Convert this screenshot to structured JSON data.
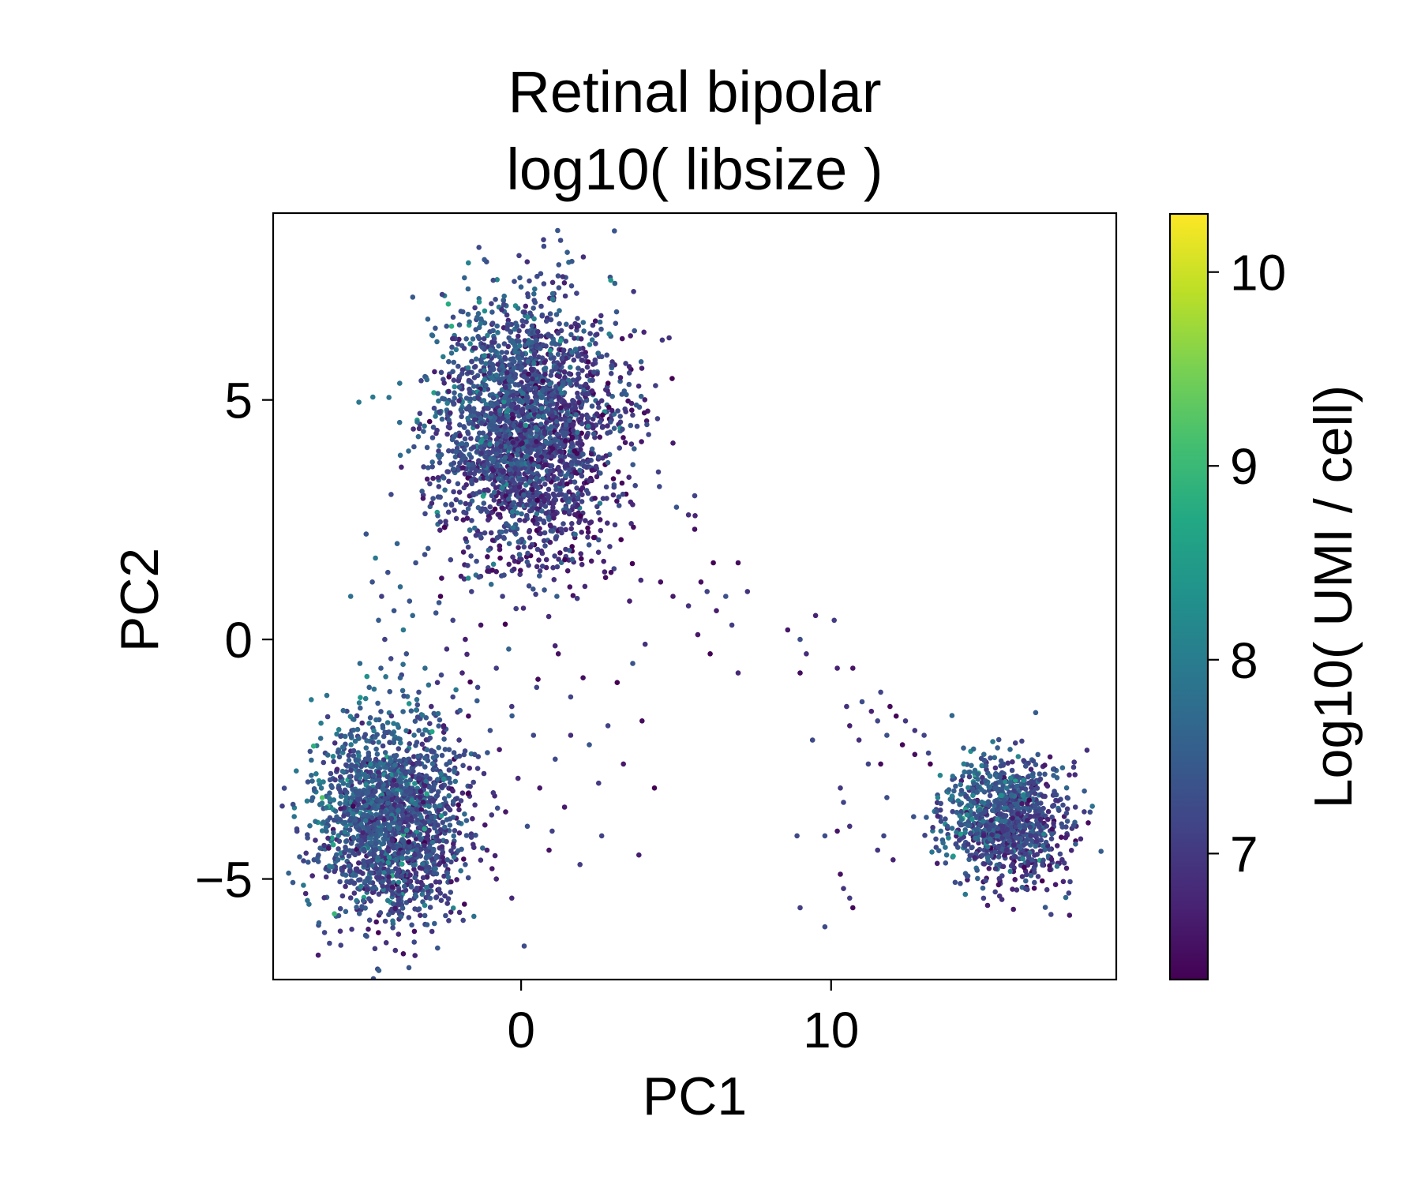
{
  "chart_data": {
    "type": "scatter",
    "title_lines": [
      "Retinal bipolar",
      "log10( libsize )"
    ],
    "xlabel": "PC1",
    "ylabel": "PC2",
    "xlim": [
      -8,
      19.2
    ],
    "ylim": [
      -7.1,
      8.9
    ],
    "x_ticks": [
      {
        "value": 0,
        "label": "0"
      },
      {
        "value": 10,
        "label": "10"
      }
    ],
    "y_ticks": [
      {
        "value": 5,
        "label": "5"
      },
      {
        "value": 0,
        "label": "0"
      },
      {
        "value": -5,
        "label": "−5"
      }
    ],
    "grid": false,
    "legend": "none",
    "colormap": "viridis",
    "colorbar": {
      "label": "Log10( UMI / cell)",
      "range": [
        6.35,
        10.3
      ],
      "ticks": [
        {
          "value": 7,
          "label": "7"
        },
        {
          "value": 8,
          "label": "8"
        },
        {
          "value": 9,
          "label": "9"
        },
        {
          "value": 10,
          "label": "10"
        }
      ]
    },
    "clusters": [
      {
        "center": [
          0.2,
          4.4
        ],
        "spread": [
          1.45,
          1.35
        ],
        "count": 2600,
        "color_mean": 7.15
      },
      {
        "center": [
          -4.2,
          -3.8
        ],
        "spread": [
          1.2,
          1.05
        ],
        "count": 1800,
        "color_mean": 7.3
      },
      {
        "center": [
          15.6,
          -3.8
        ],
        "spread": [
          1.0,
          0.65
        ],
        "count": 1000,
        "color_mean": 7.25
      }
    ],
    "bridge_points": [
      [
        -4.8,
        1.2
      ],
      [
        -4.5,
        0.9
      ],
      [
        -4.3,
        1.4
      ],
      [
        -4.1,
        0.6
      ],
      [
        -3.9,
        1.1
      ],
      [
        -3.8,
        0.2
      ],
      [
        -3.6,
        0.8
      ],
      [
        -4.6,
        0.4
      ],
      [
        -4.4,
        0.0
      ],
      [
        -4.2,
        -0.4
      ],
      [
        -3.9,
        -0.8
      ],
      [
        -3.7,
        -0.3
      ],
      [
        -3.5,
        0.5
      ],
      [
        -3.3,
        -1.1
      ],
      [
        -3.1,
        -0.6
      ],
      [
        -2.9,
        -1.4
      ],
      [
        -2.7,
        -0.9
      ],
      [
        -2.5,
        -1.8
      ],
      [
        -2.4,
        -0.2
      ],
      [
        -2.2,
        -1.2
      ],
      [
        -2.0,
        -2.1
      ],
      [
        -1.9,
        -0.7
      ],
      [
        -1.7,
        -1.6
      ],
      [
        -1.5,
        -2.4
      ],
      [
        -1.4,
        -1.0
      ],
      [
        -1.2,
        -2.8
      ],
      [
        -1.0,
        -1.9
      ],
      [
        -0.9,
        -3.2
      ],
      [
        -0.7,
        -2.3
      ],
      [
        -0.5,
        -3.6
      ],
      [
        -0.3,
        -1.4
      ],
      [
        -0.1,
        -2.9
      ],
      [
        0.2,
        -3.9
      ],
      [
        0.4,
        -2.0
      ],
      [
        0.6,
        -3.1
      ],
      [
        0.9,
        -4.4
      ],
      [
        1.1,
        -2.5
      ],
      [
        1.4,
        -3.5
      ],
      [
        1.6,
        -1.2
      ],
      [
        1.9,
        -4.7
      ],
      [
        2.2,
        -2.2
      ],
      [
        2.5,
        -3.0
      ],
      [
        2.8,
        -1.8
      ],
      [
        3.1,
        -0.9
      ],
      [
        3.3,
        -2.6
      ],
      [
        3.6,
        -0.5
      ],
      [
        3.8,
        -4.5
      ],
      [
        2.0,
        -0.8
      ],
      [
        1.2,
        -0.3
      ],
      [
        -5.0,
        2.2
      ],
      [
        -4.7,
        1.7
      ],
      [
        -4.0,
        2.0
      ],
      [
        -3.4,
        1.6
      ],
      [
        -3.0,
        1.9
      ],
      [
        -2.6,
        0.9
      ],
      [
        -2.2,
        0.4
      ],
      [
        -1.8,
        0.0
      ],
      [
        -1.3,
        0.3
      ],
      [
        -0.8,
        -0.6
      ],
      [
        -0.4,
        -0.2
      ],
      [
        -5.5,
        0.9
      ],
      [
        -5.2,
        -0.5
      ],
      [
        -4.9,
        -1.0
      ],
      [
        4.9,
        4.1
      ],
      [
        5.6,
        3.0
      ],
      [
        5.4,
        2.6
      ],
      [
        5.6,
        2.3
      ],
      [
        5.8,
        1.2
      ],
      [
        6.2,
        1.6
      ],
      [
        6.6,
        0.9
      ],
      [
        6.0,
        1.0
      ],
      [
        5.4,
        0.7
      ],
      [
        6.3,
        0.6
      ],
      [
        7.0,
        1.6
      ],
      [
        7.3,
        1.0
      ],
      [
        6.8,
        0.3
      ],
      [
        5.7,
        0.1
      ],
      [
        4.5,
        1.2
      ],
      [
        4.9,
        0.9
      ],
      [
        7.0,
        -0.7
      ],
      [
        6.1,
        -0.3
      ],
      [
        4.0,
        -0.1
      ],
      [
        3.5,
        0.8
      ],
      [
        2.9,
        1.4
      ],
      [
        8.6,
        0.2
      ],
      [
        9.0,
        0.0
      ],
      [
        9.2,
        -0.3
      ],
      [
        9.5,
        0.5
      ],
      [
        10.1,
        0.4
      ],
      [
        9.0,
        -0.7
      ],
      [
        10.2,
        -0.6
      ],
      [
        10.7,
        -0.6
      ],
      [
        10.5,
        -1.4
      ],
      [
        11.0,
        -1.3
      ],
      [
        11.3,
        -1.5
      ],
      [
        11.6,
        -1.1
      ],
      [
        11.9,
        -1.4
      ],
      [
        12.1,
        -1.6
      ],
      [
        12.4,
        -1.7
      ],
      [
        12.7,
        -1.9
      ],
      [
        13.0,
        -2.0
      ],
      [
        11.5,
        -1.7
      ],
      [
        11.8,
        -2.0
      ],
      [
        12.3,
        -2.2
      ],
      [
        10.6,
        -1.8
      ],
      [
        10.9,
        -2.1
      ],
      [
        11.2,
        -2.6
      ],
      [
        11.6,
        -2.6
      ],
      [
        9.4,
        -2.1
      ],
      [
        10.3,
        -3.1
      ],
      [
        10.4,
        -3.4
      ],
      [
        10.6,
        -3.9
      ],
      [
        9.8,
        -4.1
      ],
      [
        10.2,
        -4.0
      ],
      [
        8.9,
        -4.1
      ],
      [
        10.3,
        -4.9
      ],
      [
        10.6,
        -5.4
      ],
      [
        9.0,
        -5.6
      ],
      [
        9.8,
        -6.0
      ],
      [
        10.7,
        -5.6
      ],
      [
        10.4,
        -5.2
      ],
      [
        11.5,
        -4.4
      ],
      [
        11.8,
        -3.3
      ],
      [
        12.0,
        -4.6
      ],
      [
        11.7,
        -4.1
      ],
      [
        13.2,
        -2.6
      ],
      [
        12.7,
        -2.4
      ],
      [
        4.3,
        -3.1
      ],
      [
        3.9,
        -1.7
      ],
      [
        2.6,
        -4.1
      ],
      [
        0.1,
        -6.4
      ],
      [
        -0.3,
        -5.4
      ],
      [
        -0.8,
        -5.0
      ],
      [
        -1.1,
        -4.4
      ],
      [
        -1.8,
        -4.7
      ],
      [
        1.0,
        -4.0
      ],
      [
        1.6,
        -2.0
      ],
      [
        0.5,
        -1.0
      ],
      [
        -0.6,
        0.9
      ],
      [
        -1.6,
        1.0
      ]
    ],
    "bridge_color": 6.85,
    "seed": 20240611
  }
}
